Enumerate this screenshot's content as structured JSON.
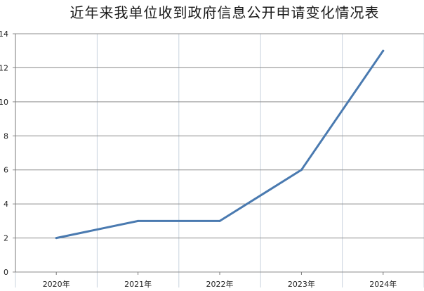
{
  "chart_data": {
    "type": "line",
    "title": "近年来我单位收到政府信息公开申请变化情况表",
    "categories": [
      "2020年",
      "2021年",
      "2022年",
      "2023年",
      "2024年"
    ],
    "series": [
      {
        "values": [
          2,
          3,
          3,
          6,
          13
        ]
      }
    ],
    "ylim": [
      0,
      14
    ],
    "yticks": [
      "0",
      "2",
      "4",
      "6",
      "8",
      "10",
      "12",
      "14"
    ],
    "xlabel": "",
    "ylabel": "",
    "grid": true,
    "legend": "none",
    "colors": {
      "line": "#4a7ab0",
      "grid": "#8c8c8c",
      "minor_grid": "#c9d3de"
    }
  }
}
